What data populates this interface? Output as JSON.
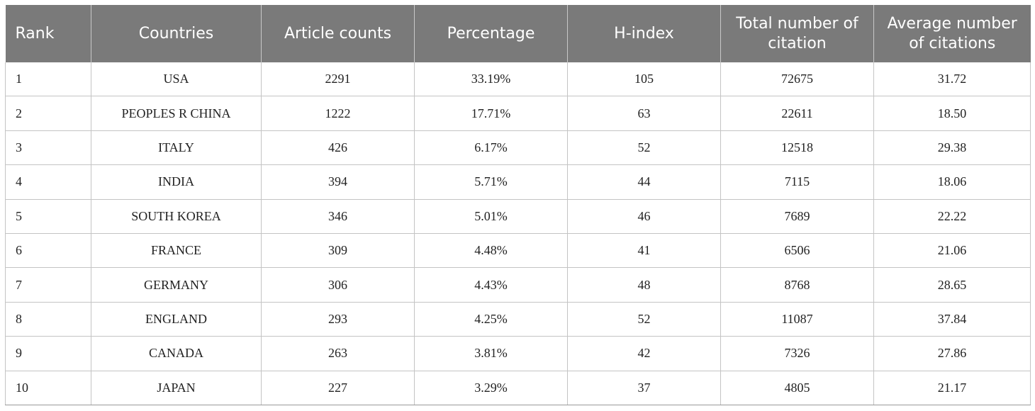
{
  "table": {
    "headers": [
      "Rank",
      "Countries",
      "Article counts",
      "Percentage",
      "H-index",
      "Total number of citation",
      "Average number of citations"
    ],
    "rows": [
      [
        "1",
        "USA",
        "2291",
        "33.19%",
        "105",
        "72675",
        "31.72"
      ],
      [
        "2",
        "PEOPLES R CHINA",
        "1222",
        "17.71%",
        "63",
        "22611",
        "18.50"
      ],
      [
        "3",
        "ITALY",
        "426",
        "6.17%",
        "52",
        "12518",
        "29.38"
      ],
      [
        "4",
        "INDIA",
        "394",
        "5.71%",
        "44",
        "7115",
        "18.06"
      ],
      [
        "5",
        "SOUTH KOREA",
        "346",
        "5.01%",
        "46",
        "7689",
        "22.22"
      ],
      [
        "6",
        "FRANCE",
        "309",
        "4.48%",
        "41",
        "6506",
        "21.06"
      ],
      [
        "7",
        "GERMANY",
        "306",
        "4.43%",
        "48",
        "8768",
        "28.65"
      ],
      [
        "8",
        "ENGLAND",
        "293",
        "4.25%",
        "52",
        "11087",
        "37.84"
      ],
      [
        "9",
        "CANADA",
        "263",
        "3.81%",
        "42",
        "7326",
        "27.86"
      ],
      [
        "10",
        "JAPAN",
        "227",
        "3.29%",
        "37",
        "4805",
        "21.17"
      ]
    ]
  }
}
